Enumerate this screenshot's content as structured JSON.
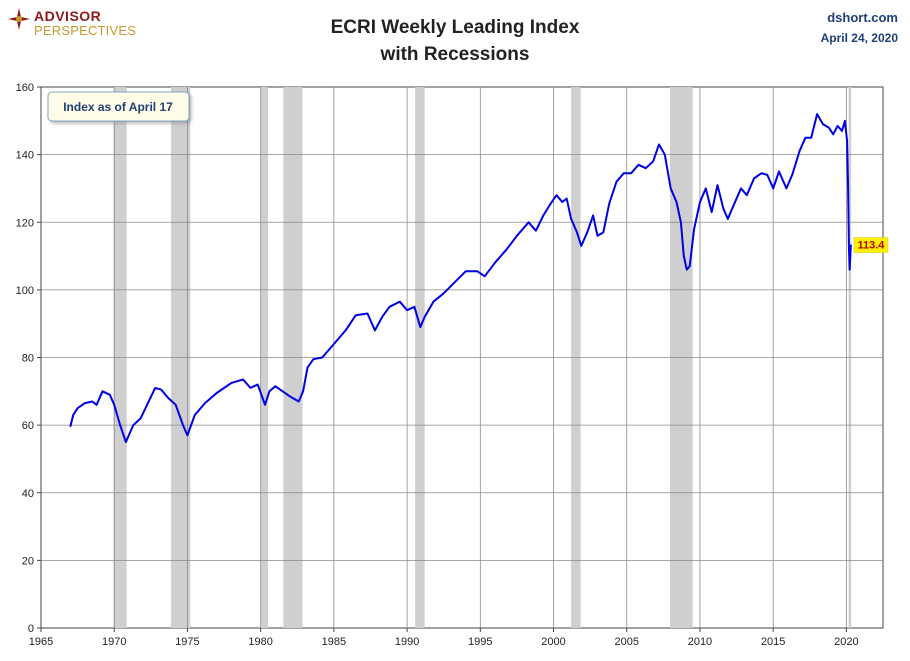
{
  "header": {
    "logo_line1": "ADVISOR",
    "logo_line2": "PERSPECTIVES",
    "title_line1": "ECRI Weekly Leading Index",
    "title_line2": "with Recessions",
    "source": "dshort.com",
    "date": "April 24, 2020"
  },
  "chart_data": {
    "type": "line",
    "title": "ECRI Weekly Leading Index with Recessions",
    "xlabel": "",
    "ylabel": "",
    "xlim": [
      1965,
      2022.5
    ],
    "ylim": [
      0,
      160
    ],
    "x_ticks": [
      1965,
      1970,
      1975,
      1980,
      1985,
      1990,
      1995,
      2000,
      2005,
      2010,
      2015,
      2020
    ],
    "y_ticks": [
      0,
      20,
      40,
      60,
      80,
      100,
      120,
      140,
      160
    ],
    "grid": true,
    "annotation": "Index as of April 17",
    "last_value_label": "113.4",
    "colors": {
      "line": "#0000e6",
      "recession": "#cfcfcf",
      "label_bg": "#fff200",
      "label_text": "#c00000"
    },
    "recessions": [
      [
        1969.95,
        1970.85
      ],
      [
        1973.88,
        1975.2
      ],
      [
        1980.0,
        1980.5
      ],
      [
        1981.55,
        1982.85
      ],
      [
        1990.55,
        1991.2
      ],
      [
        2001.2,
        2001.85
      ],
      [
        2007.95,
        2009.5
      ],
      [
        2020.15,
        2020.33
      ]
    ],
    "series": [
      {
        "x": [
          1967.0,
          1967.2,
          1967.5,
          1968.0,
          1968.5,
          1968.8,
          1969.2,
          1969.7,
          1970.0,
          1970.4,
          1970.8,
          1971.3,
          1971.8,
          1972.3,
          1972.8,
          1973.2,
          1973.7,
          1974.2,
          1974.7,
          1975.0,
          1975.5,
          1976.2,
          1977.0,
          1978.0,
          1978.8,
          1979.3,
          1979.8,
          1980.3,
          1980.6,
          1981.0,
          1981.5,
          1982.0,
          1982.6,
          1982.9,
          1983.2,
          1983.6,
          1984.2,
          1985.0,
          1985.8,
          1986.5,
          1987.3,
          1987.8,
          1988.3,
          1988.8,
          1989.5,
          1990.0,
          1990.5,
          1990.9,
          1991.2,
          1991.8,
          1992.5,
          1993.2,
          1994.0,
          1994.8,
          1995.3,
          1996.0,
          1996.8,
          1997.5,
          1998.3,
          1998.8,
          1999.3,
          1999.8,
          2000.2,
          2000.6,
          2000.9,
          2001.2,
          2001.6,
          2001.9,
          2002.3,
          2002.7,
          2003.0,
          2003.4,
          2003.8,
          2004.3,
          2004.8,
          2005.3,
          2005.8,
          2006.3,
          2006.8,
          2007.2,
          2007.6,
          2008.0,
          2008.4,
          2008.7,
          2008.9,
          2009.1,
          2009.3,
          2009.6,
          2010.0,
          2010.4,
          2010.8,
          2011.2,
          2011.6,
          2011.9,
          2012.3,
          2012.8,
          2013.2,
          2013.7,
          2014.2,
          2014.6,
          2015.0,
          2015.4,
          2015.9,
          2016.3,
          2016.8,
          2017.2,
          2017.6,
          2018.0,
          2018.4,
          2018.8,
          2019.1,
          2019.4,
          2019.7,
          2019.9,
          2020.05,
          2020.12,
          2020.17,
          2020.22,
          2020.27,
          2020.31
        ],
        "values": [
          59.5,
          63,
          65,
          66.5,
          67,
          66,
          70,
          69,
          66,
          60,
          55,
          60,
          62,
          66.5,
          71,
          70.5,
          68,
          66,
          60,
          57,
          63,
          66.5,
          69.5,
          72.5,
          73.5,
          71,
          72,
          66,
          70,
          71.5,
          70,
          68.5,
          67,
          70,
          77,
          79.5,
          80,
          84,
          88,
          92.5,
          93,
          88,
          92,
          95,
          96.5,
          94,
          95,
          89,
          92,
          96.5,
          99,
          102,
          105.5,
          105.5,
          104,
          108,
          112,
          116,
          120,
          117.5,
          122,
          125.5,
          128,
          126,
          127,
          121,
          117,
          113,
          117,
          122,
          116,
          117,
          125.5,
          132,
          134.5,
          134.5,
          137,
          136,
          138,
          143,
          140,
          130,
          126,
          120,
          110,
          106,
          107,
          118,
          126,
          130,
          123,
          131,
          124,
          121,
          125,
          130,
          128,
          133,
          134.5,
          134,
          130,
          135,
          130,
          134,
          141,
          145,
          145,
          152,
          149,
          148,
          146,
          148.5,
          147,
          150,
          144,
          130,
          113,
          106,
          110,
          113.4
        ]
      }
    ]
  }
}
